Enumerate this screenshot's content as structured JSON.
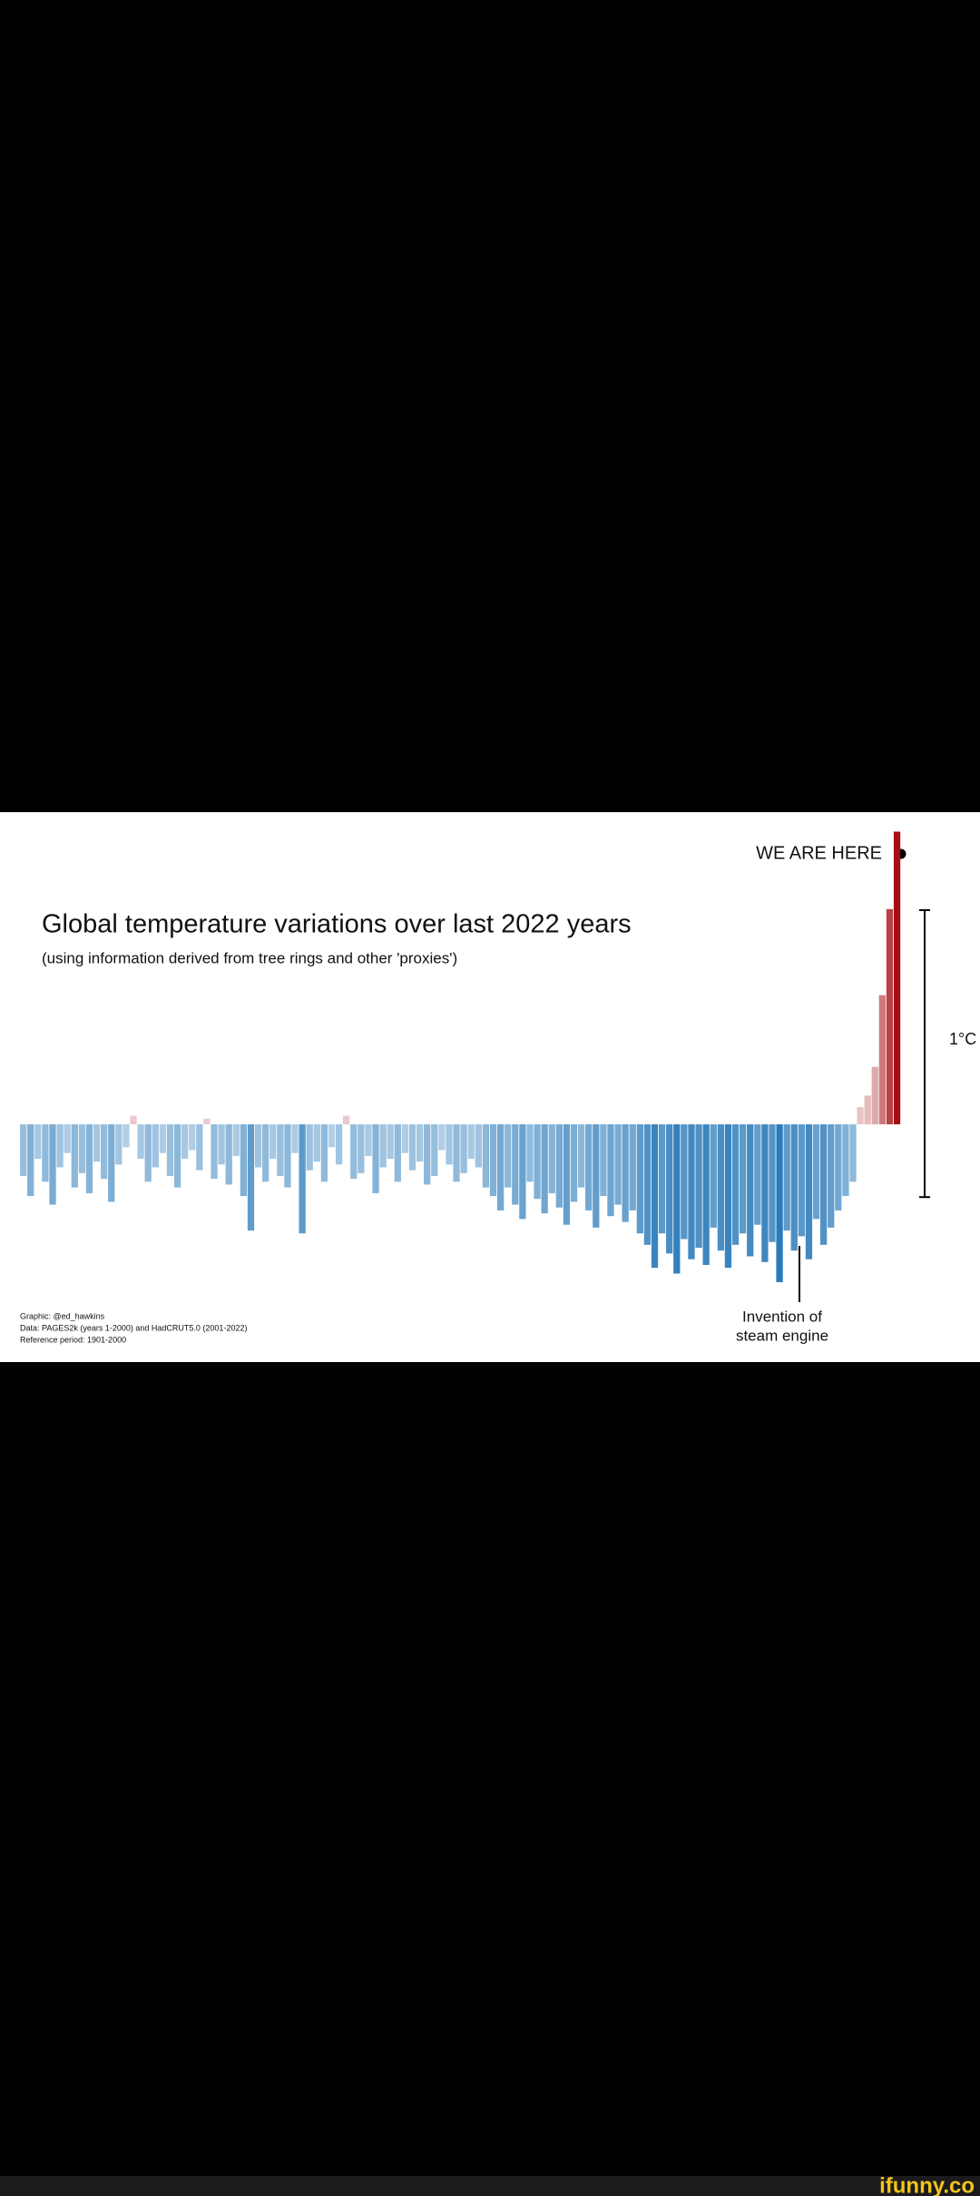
{
  "chart_data": {
    "type": "bar",
    "title": "Global temperature variations over last 2022 years",
    "subtitle": "(using information derived from tree rings and other 'proxies')",
    "values": [
      -0.18,
      -0.25,
      -0.12,
      -0.2,
      -0.28,
      -0.15,
      -0.1,
      -0.22,
      -0.17,
      -0.24,
      -0.13,
      -0.19,
      -0.27,
      -0.14,
      -0.08,
      0.03,
      -0.12,
      -0.2,
      -0.15,
      -0.1,
      -0.18,
      -0.22,
      -0.12,
      -0.09,
      -0.16,
      0.02,
      -0.19,
      -0.14,
      -0.21,
      -0.11,
      -0.25,
      -0.37,
      -0.15,
      -0.2,
      -0.12,
      -0.18,
      -0.22,
      -0.1,
      -0.38,
      -0.16,
      -0.13,
      -0.2,
      -0.08,
      -0.14,
      0.03,
      -0.19,
      -0.17,
      -0.11,
      -0.24,
      -0.15,
      -0.12,
      -0.2,
      -0.1,
      -0.16,
      -0.13,
      -0.21,
      -0.18,
      -0.09,
      -0.14,
      -0.2,
      -0.17,
      -0.12,
      -0.15,
      -0.22,
      -0.25,
      -0.3,
      -0.22,
      -0.28,
      -0.33,
      -0.2,
      -0.26,
      -0.31,
      -0.24,
      -0.29,
      -0.35,
      -0.27,
      -0.22,
      -0.3,
      -0.36,
      -0.25,
      -0.32,
      -0.28,
      -0.34,
      -0.3,
      -0.38,
      -0.42,
      -0.5,
      -0.38,
      -0.45,
      -0.52,
      -0.4,
      -0.47,
      -0.43,
      -0.49,
      -0.36,
      -0.44,
      -0.5,
      -0.42,
      -0.38,
      -0.46,
      -0.35,
      -0.48,
      -0.41,
      -0.55,
      -0.37,
      -0.44,
      -0.39,
      -0.47,
      -0.33,
      -0.42,
      -0.36,
      -0.3,
      -0.25,
      -0.2,
      0.06,
      0.1,
      0.2,
      0.45,
      0.75,
      1.02
    ],
    "cold_color": "#2b7bba",
    "warm_color": "#a50f15",
    "ylim": [
      -0.8,
      1.05
    ],
    "scale_bar": {
      "value": 1,
      "label": "1°C"
    },
    "we_are_here": "WE ARE HERE",
    "steam_engine": [
      "Invention of",
      "steam engine"
    ],
    "credits": [
      "Graphic: @ed_hawkins",
      "Data: PAGES2k (years 1-2000) and HadCRUT5.0 (2001-2022)",
      "Reference period: 1901-2000"
    ]
  },
  "watermark": "ifunny.co"
}
